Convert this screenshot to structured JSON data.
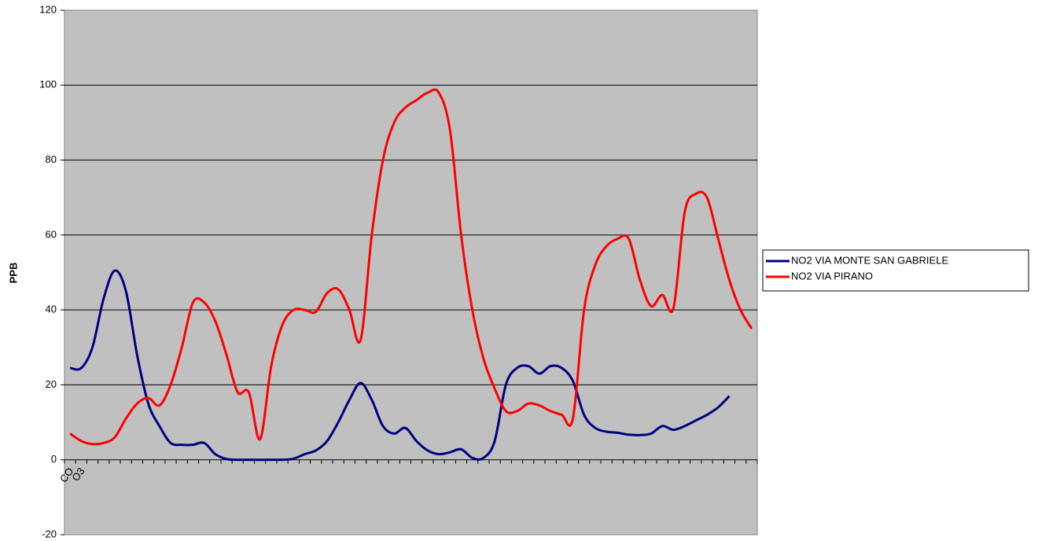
{
  "chart_data": {
    "type": "line",
    "y_label": "PPB",
    "categories": [
      "CO",
      "O3",
      null,
      null,
      null,
      null,
      null,
      null,
      null,
      null,
      null,
      null,
      null,
      null,
      null,
      null,
      null,
      null,
      null,
      null,
      null,
      null,
      null,
      null,
      null,
      null,
      null,
      null,
      null,
      null,
      null,
      null,
      null,
      null,
      null,
      null,
      null,
      null,
      null,
      null,
      null,
      null,
      null,
      null,
      null,
      null,
      null,
      null,
      null,
      null,
      null,
      null,
      null,
      null,
      null,
      null,
      null,
      null,
      null,
      null,
      null,
      null
    ],
    "series": [
      {
        "name": "NO2 VIA MONTE SAN GABRIELE",
        "color": "#000080",
        "values": [
          24.5,
          24.5,
          30,
          43,
          50.5,
          45,
          28,
          15,
          9,
          4.5,
          4,
          4,
          4.5,
          1.5,
          0.2,
          0,
          0,
          0,
          0,
          0,
          0.3,
          1.5,
          2.5,
          5,
          10,
          16,
          20.5,
          16,
          9,
          7,
          8.5,
          5,
          2.5,
          1.5,
          2,
          2.8,
          0.5,
          0.5,
          5,
          20,
          24.5,
          25,
          23,
          25,
          24.5,
          21,
          12,
          8.5,
          7.5,
          7.2,
          6.7,
          6.6,
          7,
          9,
          8,
          9,
          10.5,
          12,
          14,
          17,
          null,
          null
        ]
      },
      {
        "name": "NO2 VIA PIRANO",
        "color": "#ff0000",
        "values": [
          7,
          5,
          4.2,
          4.5,
          6,
          11,
          15,
          16.5,
          14.5,
          20,
          30,
          42,
          42,
          37,
          28,
          18,
          18,
          5.5,
          25,
          36,
          40,
          40,
          39.5,
          44.5,
          45.5,
          40,
          32,
          60,
          80,
          90,
          94,
          96,
          98,
          98,
          88,
          60,
          40,
          27,
          19,
          13,
          13,
          15,
          14.5,
          13,
          12,
          11,
          40,
          52,
          57,
          59,
          59,
          48,
          41,
          44,
          40.5,
          66,
          71,
          70,
          59,
          48,
          40,
          35
        ]
      }
    ],
    "ylim": [
      -20,
      120
    ],
    "yticks": [
      -20,
      0,
      20,
      40,
      60,
      80,
      100,
      120
    ],
    "grid": true,
    "plot_background": "#c0c0c0",
    "legend": "right"
  }
}
